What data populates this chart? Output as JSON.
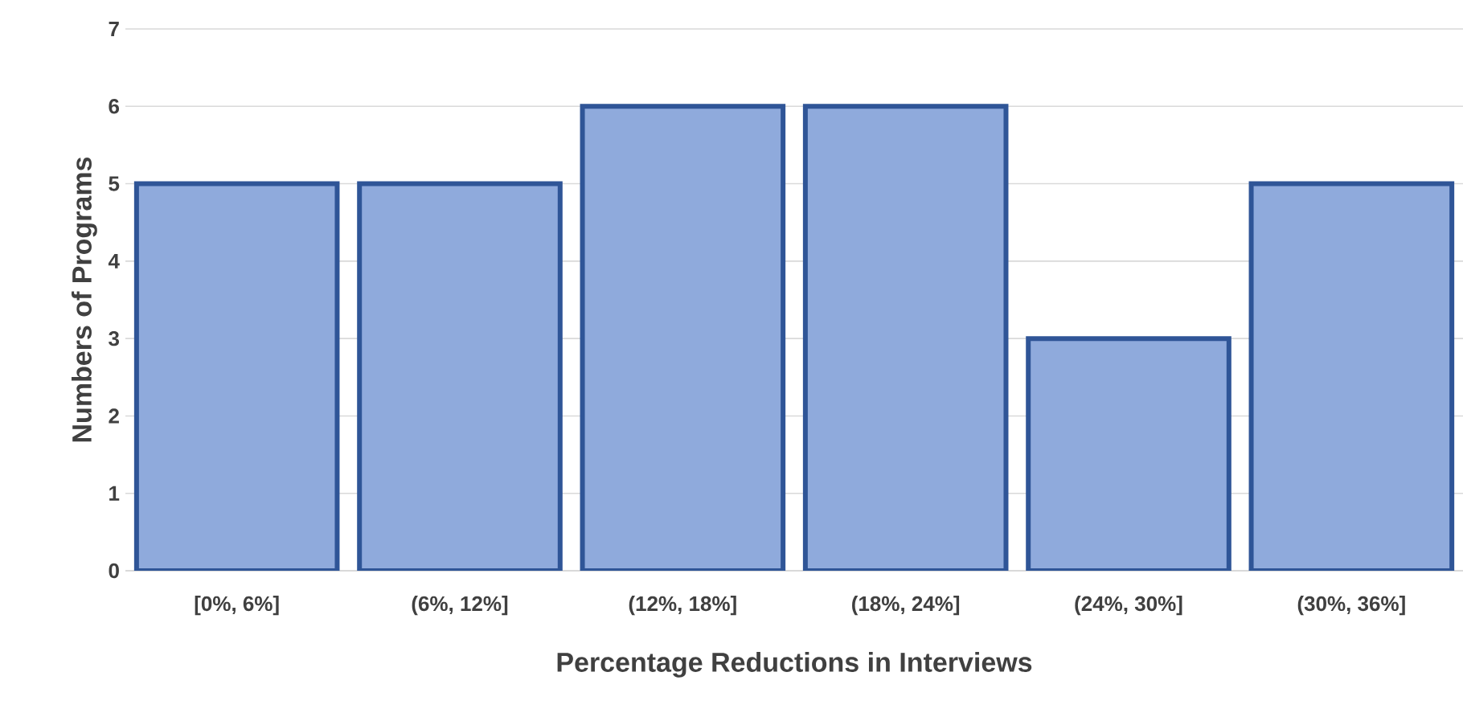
{
  "chart_data": {
    "type": "bar",
    "xlabel": "Percentage Reductions in Interviews",
    "ylabel": "Numbers of Programs",
    "categories": [
      "[0%, 6%]",
      "(6%, 12%]",
      "(12%, 18%]",
      "(18%, 24%]",
      "(24%, 30%]",
      "(30%, 36%]"
    ],
    "values": [
      5,
      5,
      6,
      6,
      3,
      5
    ],
    "color": "#8faadc",
    "ylim": [
      0,
      7
    ],
    "yticks": [
      0,
      1,
      2,
      3,
      4,
      5,
      6,
      7
    ],
    "grid": "y"
  }
}
